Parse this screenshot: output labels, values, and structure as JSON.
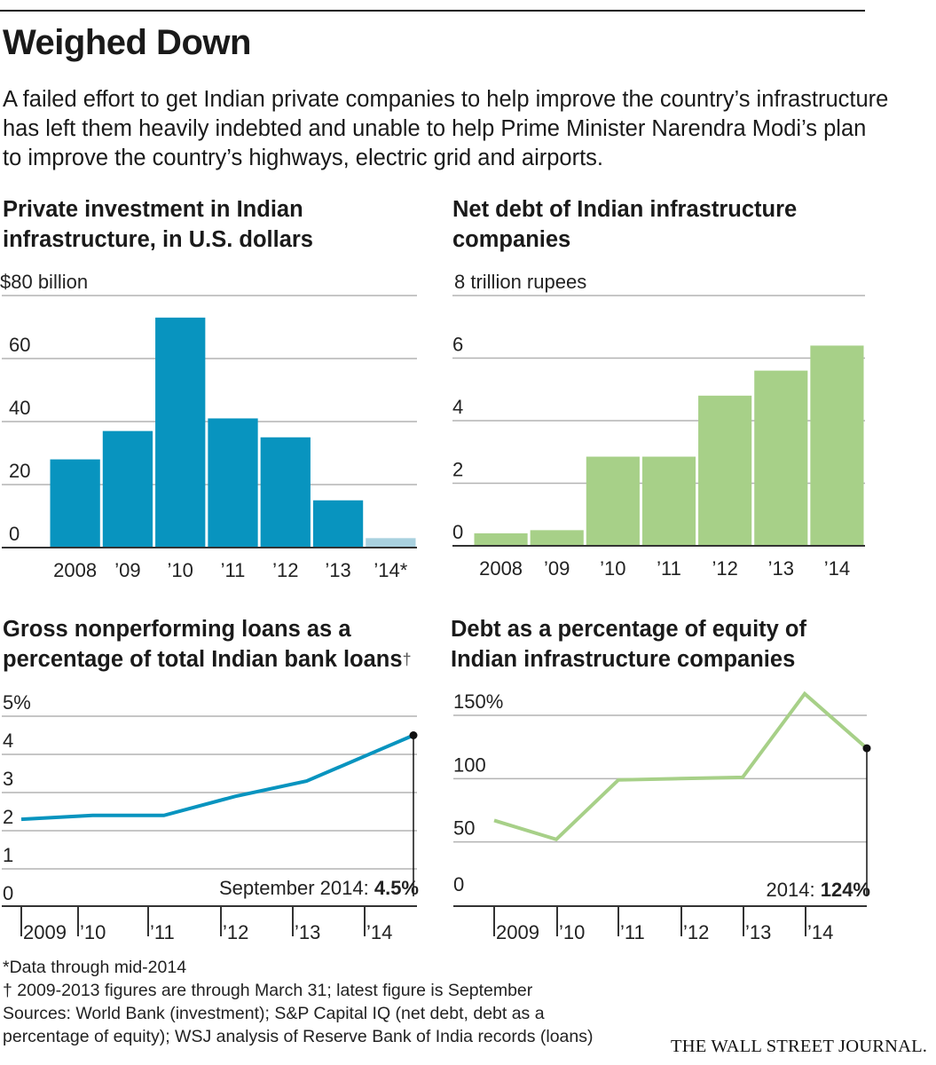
{
  "header": {
    "title": "Weighed Down",
    "intro": "A failed effort to get Indian private companies to help improve the country’s infrastructure has left them heavily indebted and unable to help Prime Minister Narendra Modi’s plan to improve the country’s highways, electric grid and airports."
  },
  "colors": {
    "blue": "#0894bf",
    "blue_light": "#a9d1df",
    "green": "#a7d088",
    "grid": "#b3b3b3",
    "axis": "#333333"
  },
  "chart_data": [
    {
      "id": "investment",
      "type": "bar",
      "title": "Private investment in Indian infrastructure, in U.S. dollars",
      "unit_label": "$80 billion",
      "categories": [
        "2008",
        "’09",
        "’10",
        "’11",
        "’12",
        "’13",
        "’14*"
      ],
      "values": [
        28,
        37,
        73,
        41,
        35,
        15,
        3
      ],
      "highlight_last_as_partial": true,
      "yticks": [
        "60",
        "40",
        "20",
        "0"
      ],
      "ytick_values": [
        60,
        40,
        20,
        0
      ],
      "ylim": [
        0,
        80
      ]
    },
    {
      "id": "net_debt",
      "type": "bar",
      "title": "Net debt of Indian infrastructure companies",
      "unit_label": "8 trillion rupees",
      "categories": [
        "2008",
        "’09",
        "’10",
        "’11",
        "’12",
        "’13",
        "’14"
      ],
      "values": [
        0.4,
        0.5,
        2.85,
        2.85,
        4.8,
        5.6,
        6.4
      ],
      "yticks": [
        "6",
        "4",
        "2",
        "0"
      ],
      "ytick_values": [
        6,
        4,
        2,
        0
      ],
      "ylim": [
        0,
        8
      ]
    },
    {
      "id": "npl",
      "type": "line",
      "title": "Gross nonperforming loans as a percentage of total Indian bank loans",
      "title_mark": "†",
      "x": [
        2009.0,
        2010.0,
        2011.0,
        2012.0,
        2013.0,
        2014.0,
        2014.5
      ],
      "values": [
        2.3,
        2.4,
        2.4,
        2.9,
        3.3,
        4.1,
        4.5
      ],
      "xlabels": [
        "2009",
        "’10",
        "’11",
        "’12",
        "’13",
        "’14"
      ],
      "yticks": [
        "5%",
        "4",
        "3",
        "2",
        "1",
        "0"
      ],
      "ytick_values": [
        5,
        4,
        3,
        2,
        1,
        0
      ],
      "ylim": [
        0,
        5
      ],
      "annotation": {
        "label": "September 2014: ",
        "value": "4.5%"
      }
    },
    {
      "id": "debt_equity",
      "type": "line",
      "title": "Debt as a percentage of equity of Indian infrastructure companies",
      "x": [
        2008.0,
        2009.0,
        2010.0,
        2011.0,
        2012.0,
        2013.0,
        2014.0
      ],
      "values": [
        67,
        52,
        99,
        100,
        101,
        167,
        124
      ],
      "xlabels": [
        "2009",
        "’10",
        "’11",
        "’12",
        "’13",
        "’14"
      ],
      "yticks": [
        "150%",
        "100",
        "50",
        "0"
      ],
      "ytick_values": [
        150,
        100,
        50,
        0
      ],
      "ylim": [
        0,
        150
      ],
      "annotation": {
        "label": "2014: ",
        "value": "124%"
      }
    }
  ],
  "footnotes": {
    "star": "*Data through mid-2014",
    "dagger": "† 2009-2013 figures are through March 31; latest figure is September",
    "sources_line1": "Sources: World Bank (investment); S&P Capital IQ (net debt, debt as a",
    "sources_line2": "percentage of equity); WSJ analysis of Reserve Bank of India records (loans)"
  },
  "credit": "THE WALL STREET JOURNAL."
}
